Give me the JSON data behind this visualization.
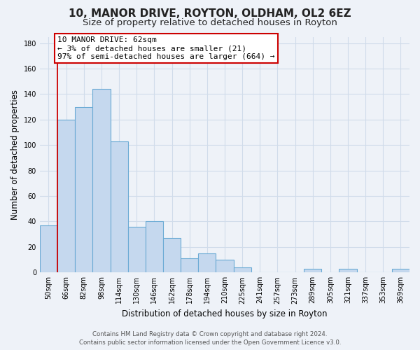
{
  "title": "10, MANOR DRIVE, ROYTON, OLDHAM, OL2 6EZ",
  "subtitle": "Size of property relative to detached houses in Royton",
  "xlabel": "Distribution of detached houses by size in Royton",
  "ylabel": "Number of detached properties",
  "bar_labels": [
    "50sqm",
    "66sqm",
    "82sqm",
    "98sqm",
    "114sqm",
    "130sqm",
    "146sqm",
    "162sqm",
    "178sqm",
    "194sqm",
    "210sqm",
    "225sqm",
    "241sqm",
    "257sqm",
    "273sqm",
    "289sqm",
    "305sqm",
    "321sqm",
    "337sqm",
    "353sqm",
    "369sqm"
  ],
  "bar_values": [
    37,
    120,
    130,
    144,
    103,
    36,
    40,
    27,
    11,
    15,
    10,
    4,
    0,
    0,
    0,
    3,
    0,
    3,
    0,
    0,
    3
  ],
  "bar_color": "#c5d8ee",
  "bar_edge_color": "#6aaad4",
  "highlight_color": "#cc0000",
  "annotation_text": "10 MANOR DRIVE: 62sqm\n← 3% of detached houses are smaller (21)\n97% of semi-detached houses are larger (664) →",
  "annotation_box_color": "#ffffff",
  "annotation_box_edge": "#cc0000",
  "ylim": [
    0,
    185
  ],
  "yticks": [
    0,
    20,
    40,
    60,
    80,
    100,
    120,
    140,
    160,
    180
  ],
  "footer_line1": "Contains HM Land Registry data © Crown copyright and database right 2024.",
  "footer_line2": "Contains public sector information licensed under the Open Government Licence v3.0.",
  "bg_color": "#eef2f8",
  "plot_bg_color": "#eef2f8",
  "grid_color": "#d0dcea",
  "title_fontsize": 11,
  "subtitle_fontsize": 9.5,
  "tick_fontsize": 7,
  "ylabel_fontsize": 8.5,
  "xlabel_fontsize": 8.5,
  "annotation_fontsize": 8,
  "footer_fontsize": 6.2
}
